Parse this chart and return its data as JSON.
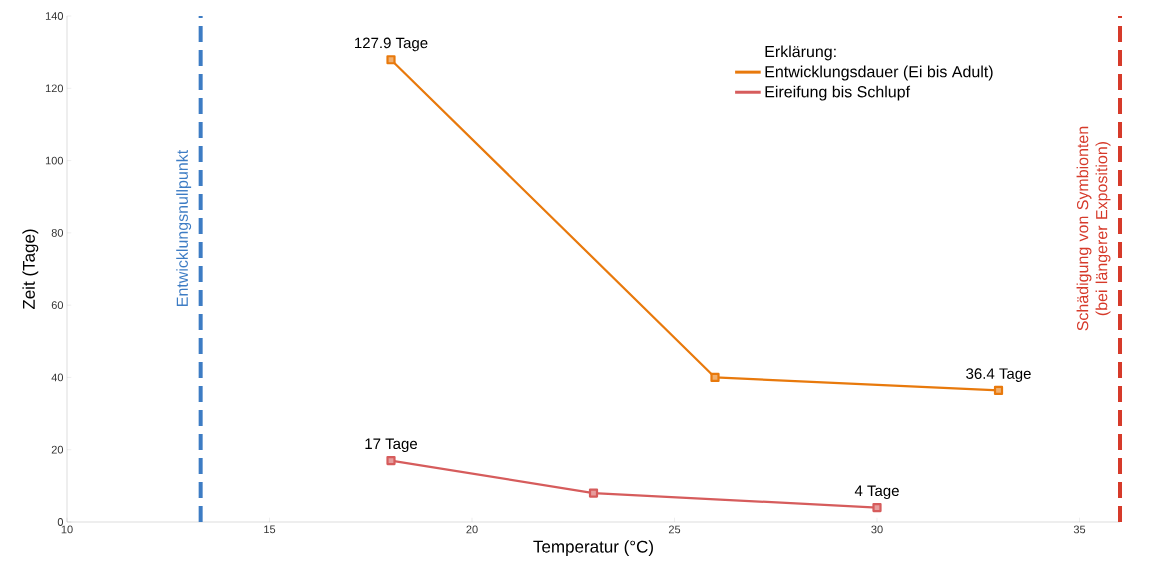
{
  "chart_data": {
    "type": "line",
    "xlabel": "Temperatur (°C)",
    "ylabel": "Zeit (Tage)",
    "legend_title": "Erklärung:",
    "xlim": [
      10,
      36
    ],
    "ylim": [
      0,
      140
    ],
    "xticks": [
      10,
      15,
      20,
      25,
      30,
      35
    ],
    "yticks": [
      0,
      20,
      40,
      60,
      80,
      100,
      120,
      140
    ],
    "grid": false,
    "legend": "top right",
    "marker": "square",
    "line_style": "solid",
    "series": [
      {
        "name": "Entwicklungsdauer (Ei bis Adult)",
        "color": "#e8790c",
        "x": [
          18,
          26,
          33
        ],
        "values": [
          127.9,
          40,
          36.4
        ],
        "value_labels": [
          "127.9 Tage",
          null,
          "36.4 Tage"
        ]
      },
      {
        "name": "Eireifung bis Schlupf",
        "color": "#d65c5c",
        "x": [
          18,
          23,
          30
        ],
        "values": [
          17,
          8,
          4
        ],
        "value_labels": [
          "17 Tage",
          null,
          "4 Tage"
        ]
      }
    ],
    "ref_lines": [
      {
        "axis": "x",
        "value": 13.3,
        "label": "Entwicklungsnullpunkt",
        "color": "#3d7cc4",
        "line_style": "dashed"
      },
      {
        "axis": "x",
        "value": 36,
        "label": "Schädigung von Symbionten (bei längerer Exposition)",
        "color": "#d63a2a",
        "line_style": "dashed"
      }
    ]
  }
}
